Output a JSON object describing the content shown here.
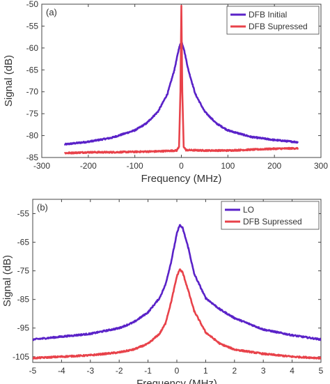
{
  "chart_data": [
    {
      "type": "line",
      "panel_label": "(a)",
      "xlabel": "Frequency (MHz)",
      "ylabel": "Signal (dB)",
      "xlim": [
        -300,
        300
      ],
      "ylim": [
        -85,
        -50
      ],
      "xticks": [
        -300,
        -200,
        -100,
        0,
        100,
        200,
        300
      ],
      "yticks": [
        -85,
        -80,
        -75,
        -70,
        -65,
        -60,
        -55,
        -50
      ],
      "legend_position": "top-right",
      "series": [
        {
          "name": "DFB Initial",
          "color": "#5a22c8",
          "x": [
            -250,
            -200,
            -150,
            -100,
            -75,
            -50,
            -30,
            -15,
            -5,
            0,
            5,
            15,
            30,
            50,
            75,
            100,
            150,
            200,
            250
          ],
          "y": [
            -82,
            -81.4,
            -80.5,
            -78.8,
            -77.2,
            -74.5,
            -70.5,
            -65,
            -60,
            -58.5,
            -60,
            -65,
            -70.5,
            -74.5,
            -77.2,
            -78.8,
            -80.3,
            -81,
            -81.5
          ]
        },
        {
          "name": "DFB Supressed",
          "color": "#e8424a",
          "x": [
            -250,
            -200,
            -150,
            -100,
            -50,
            -10,
            -5,
            -2,
            0,
            2,
            5,
            10,
            50,
            100,
            150,
            200,
            250
          ],
          "y": [
            -84,
            -83.8,
            -83.8,
            -83.7,
            -83.6,
            -83.4,
            -82.5,
            -70,
            -50.5,
            -70,
            -82.5,
            -83.3,
            -83.4,
            -83.4,
            -83.2,
            -83,
            -82.9
          ]
        }
      ]
    },
    {
      "type": "line",
      "panel_label": "(b)",
      "xlabel": "Frequency (MHz)",
      "ylabel": "Signal (dB)",
      "xlim": [
        -5,
        5
      ],
      "ylim": [
        -107,
        -50
      ],
      "xticks": [
        -5,
        -4,
        -3,
        -2,
        -1,
        0,
        1,
        2,
        3,
        4,
        5
      ],
      "yticks": [
        -105,
        -95,
        -85,
        -75,
        -65,
        -55
      ],
      "legend_position": "top-right",
      "series": [
        {
          "name": "LO",
          "color": "#5a22c8",
          "x": [
            -5,
            -4,
            -3,
            -2,
            -1.5,
            -1,
            -0.6,
            -0.4,
            -0.2,
            0,
            0.1,
            0.2,
            0.4,
            0.6,
            1,
            1.5,
            2,
            3,
            4,
            5
          ],
          "y": [
            -99,
            -98,
            -97,
            -95,
            -93,
            -89.5,
            -84.5,
            -80,
            -72,
            -62,
            -59,
            -60,
            -67,
            -76,
            -84.5,
            -88.5,
            -91.5,
            -95.5,
            -97.5,
            -99
          ]
        },
        {
          "name": "DFB Supressed",
          "color": "#e8424a",
          "x": [
            -5,
            -4,
            -3,
            -2,
            -1.5,
            -1,
            -0.6,
            -0.4,
            -0.2,
            0,
            0.1,
            0.2,
            0.4,
            0.6,
            1,
            1.5,
            2,
            3,
            4,
            5
          ],
          "y": [
            -105.5,
            -105,
            -104.5,
            -103.5,
            -102.5,
            -100.5,
            -97,
            -93.5,
            -86,
            -77,
            -74.5,
            -75.5,
            -82,
            -89,
            -96.5,
            -100.5,
            -102.5,
            -104,
            -105,
            -105.5
          ]
        }
      ]
    }
  ]
}
